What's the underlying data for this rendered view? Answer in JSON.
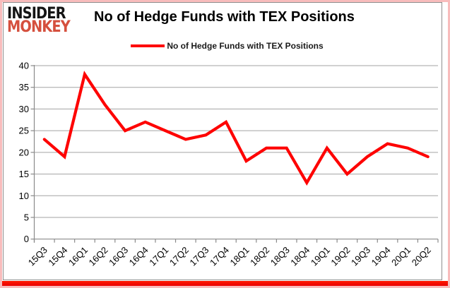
{
  "branding": {
    "logo_line1": "INSIDER",
    "logo_line2": "MONKEY",
    "logo_color_top": "#141414",
    "logo_color_bottom": "#d5503e"
  },
  "header": {
    "title": "No of Hedge Funds with TEX Positions"
  },
  "legend": {
    "label": "No of Hedge Funds with TEX Positions",
    "swatch_color": "#fe0100"
  },
  "frame": {
    "outer_border_color": "#f8bcbc",
    "chart_border_color": "#8f8f8f",
    "bottom_bar_color": "#ef0000"
  },
  "chart_data": {
    "type": "line",
    "title": "No of Hedge Funds with TEX Positions",
    "xlabel": "",
    "ylabel": "",
    "categories": [
      "15Q3",
      "15Q4",
      "16Q1",
      "16Q2",
      "16Q3",
      "16Q4",
      "17Q1",
      "17Q2",
      "17Q3",
      "17Q4",
      "18Q1",
      "18Q2",
      "18Q3",
      "18Q4",
      "19Q1",
      "19Q2",
      "19Q3",
      "19Q4",
      "20Q1",
      "20Q2"
    ],
    "series": [
      {
        "name": "No of Hedge Funds with TEX Positions",
        "color": "#fe0100",
        "values": [
          23,
          19,
          38,
          31,
          25,
          27,
          25,
          23,
          24,
          27,
          18,
          21,
          21,
          13,
          21,
          15,
          19,
          22,
          21,
          19
        ]
      }
    ],
    "ylim": [
      0,
      40
    ],
    "ytick_step": 5,
    "yticks": [
      0,
      5,
      10,
      15,
      20,
      25,
      30,
      35,
      40
    ],
    "grid": true,
    "grid_color": "#a3a3a3",
    "axis_color": "#8a8a8a",
    "tick_label_color": "#000000",
    "legend_position": "top",
    "x_label_rotation_deg": -45
  }
}
